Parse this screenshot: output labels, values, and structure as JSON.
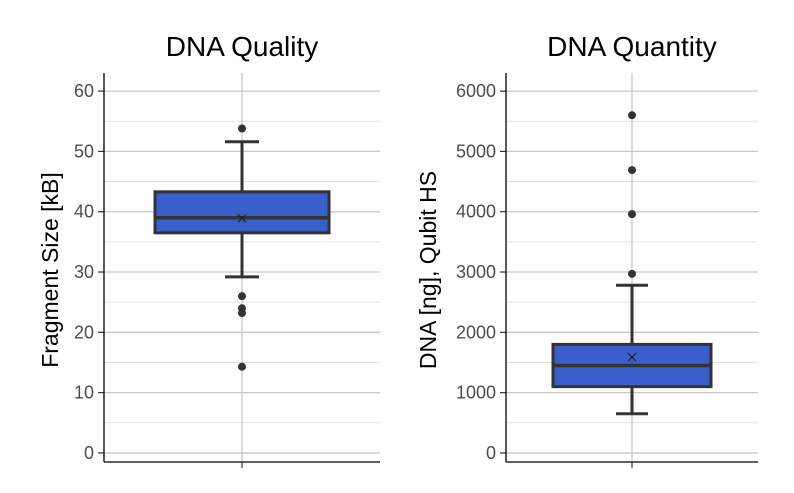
{
  "chart_data": [
    {
      "type": "box",
      "title": "DNA Quality",
      "ylabel": "Fragment Size [kB]",
      "xlabel": "",
      "ylim": [
        -1.5,
        63
      ],
      "yticks": [
        0,
        10,
        20,
        30,
        40,
        50,
        60
      ],
      "grid": true,
      "box_color": "#3a5fcd",
      "stats": {
        "lower_whisker": 29.2,
        "q1": 36.5,
        "median": 39.0,
        "q3": 43.3,
        "upper_whisker": 51.6,
        "mean": 38.9
      },
      "outliers": [
        53.8,
        26.0,
        24.0,
        23.2,
        14.3
      ]
    },
    {
      "type": "box",
      "title": "DNA Quantity",
      "ylabel": "DNA [ng], Qubit HS",
      "xlabel": "",
      "ylim": [
        -150,
        6300
      ],
      "yticks": [
        0,
        1000,
        2000,
        3000,
        4000,
        5000,
        6000
      ],
      "grid": true,
      "box_color": "#3a5fcd",
      "stats": {
        "lower_whisker": 650,
        "q1": 1100,
        "median": 1450,
        "q3": 1800,
        "upper_whisker": 2780,
        "mean": 1590
      },
      "outliers": [
        2970,
        3960,
        4690,
        5600
      ]
    }
  ]
}
